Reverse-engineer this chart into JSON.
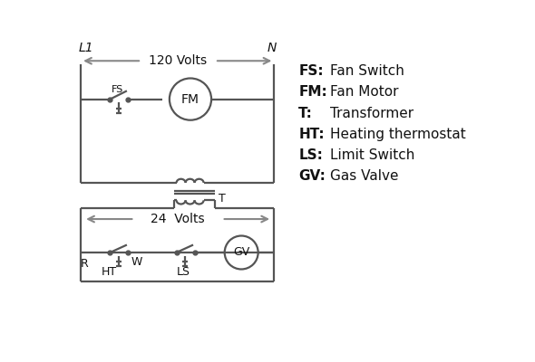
{
  "bg_color": "#ffffff",
  "line_color": "#555555",
  "arrow_color": "#888888",
  "text_color": "#111111",
  "legend_items": [
    [
      "FS:",
      "Fan Switch"
    ],
    [
      "FM:",
      "Fan Motor"
    ],
    [
      "T:",
      "Transformer"
    ],
    [
      "HT:",
      "Heating thermostat"
    ],
    [
      "LS:",
      "Limit Switch"
    ],
    [
      "GV:",
      "Gas Valve"
    ]
  ],
  "volts_120_label": "120 Volts",
  "volts_24_label": "24  Volts",
  "L1_label": "L1",
  "N_label": "N",
  "T_label": "T",
  "R_label": "R",
  "W_label": "W",
  "HT_label": "HT",
  "LS_label": "LS",
  "FS_label": "FS",
  "FM_label": "FM",
  "GV_label": "GV"
}
